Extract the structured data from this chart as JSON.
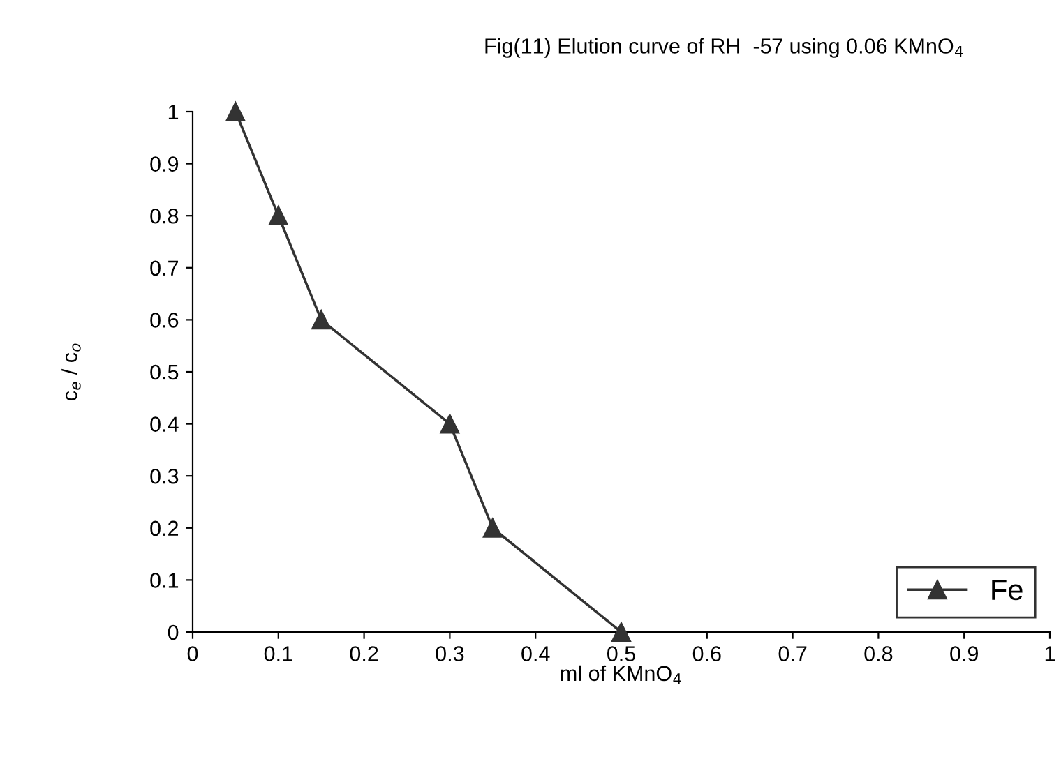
{
  "chart_data": {
    "type": "line",
    "title": "Fig(11) Elution curve of RH  -57 using 0.06 KMnO$_{4}$",
    "xlabel": "ml of KMnO$_{4}$",
    "ylabel": "c$_{e}$ / c$_{o}$",
    "x": [
      0.05,
      0.1,
      0.15,
      0.3,
      0.35,
      0.5
    ],
    "series": [
      {
        "name": "Fe",
        "color": "#333333",
        "values": [
          1,
          0.8,
          0.6,
          0.4,
          0.2,
          0
        ]
      }
    ],
    "xlim": [
      0,
      1
    ],
    "xticks": [
      0,
      0.1,
      0.2,
      0.3,
      0.4,
      0.5,
      0.6,
      0.7,
      0.8,
      0.9,
      1
    ],
    "ylim": [
      0,
      1
    ],
    "yticks": [
      0,
      0.1,
      0.2,
      0.3,
      0.4,
      0.5,
      0.6,
      0.7,
      0.8,
      0.9,
      1
    ],
    "marker": "triangle",
    "line_style": "solid",
    "grid": false,
    "legend": "bottom right"
  }
}
